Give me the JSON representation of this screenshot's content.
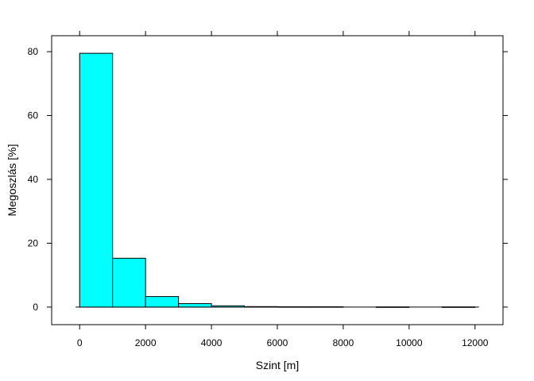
{
  "chart_data": {
    "type": "bar",
    "subtype": "histogram",
    "title": "",
    "xlabel": "Szint [m]",
    "ylabel": "Megoszlás [%]",
    "xlim": [
      -850,
      12850
    ],
    "ylim": [
      -5.5,
      85
    ],
    "xticks": [
      0,
      2000,
      4000,
      6000,
      8000,
      10000,
      12000
    ],
    "yticks": [
      0,
      20,
      40,
      60,
      80
    ],
    "bin_edges": [
      0,
      1000,
      2000,
      3000,
      4000,
      5000,
      6000,
      7000,
      8000,
      9000,
      10000,
      11000,
      12000
    ],
    "values": [
      79.5,
      15.3,
      3.3,
      1.1,
      0.4,
      0.15,
      0.1,
      0.1,
      0.0,
      0.05,
      0.0,
      0.05
    ],
    "bar_color": "#00FFFF",
    "edge_color": "#000000",
    "grid": false,
    "legend": "none"
  }
}
